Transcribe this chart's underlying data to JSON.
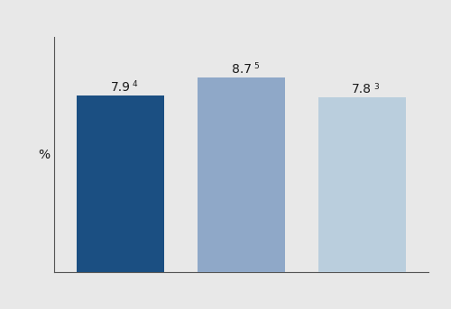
{
  "categories": [
    "",
    "",
    ""
  ],
  "values": [
    7.9,
    8.7,
    7.8
  ],
  "labels": [
    "7.9",
    "8.7",
    "7.8"
  ],
  "superscripts": [
    "4",
    "5",
    "3"
  ],
  "bar_colors": [
    "#1b4f82",
    "#8fa8c8",
    "#bacedd"
  ],
  "ylabel": "%",
  "ylim": [
    0,
    10.5
  ],
  "background_color": "#e8e8e8",
  "axes_facecolor": "#e8e8e8",
  "bar_width": 0.72,
  "label_fontsize": 10,
  "superscript_fontsize": 6.5,
  "ylabel_fontsize": 10,
  "spine_color": "#555555"
}
